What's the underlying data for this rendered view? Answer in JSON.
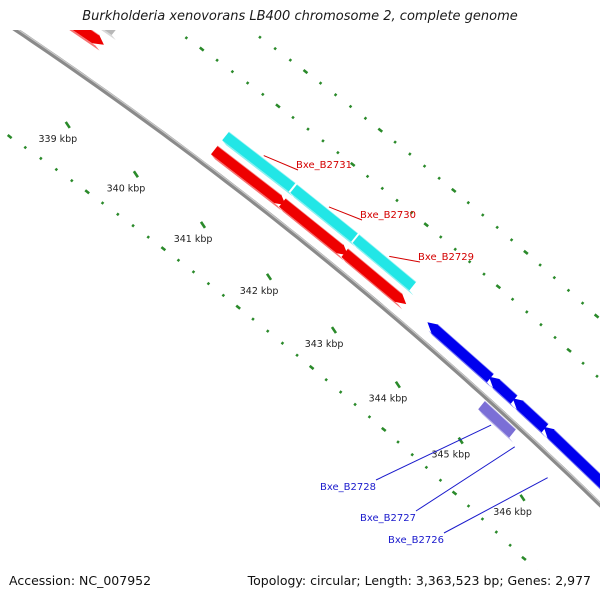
{
  "header": {
    "title": "Burkholderia xenovorans LB400 chromosome 2, complete genome"
  },
  "scale": {
    "tick_labels": [
      "339 kbp",
      "340 kbp",
      "341 kbp",
      "342 kbp",
      "343 kbp",
      "344 kbp",
      "345 kbp",
      "346 kbp"
    ]
  },
  "genes": {
    "labeled": [
      {
        "name": "Bxe_B2731",
        "color": "#d40000"
      },
      {
        "name": "Bxe_B2730",
        "color": "#d40000"
      },
      {
        "name": "Bxe_B2729",
        "color": "#d40000"
      },
      {
        "name": "Bxe_B2728",
        "color": "#1a1acc"
      },
      {
        "name": "Bxe_B2727",
        "color": "#1a1acc"
      },
      {
        "name": "Bxe_B2726",
        "color": "#1a1acc"
      }
    ]
  },
  "colors": {
    "forward_strand": "#ee0000",
    "reverse_strand": "#0000ee",
    "cds_highlight": "#22e6e6",
    "other_feature": "#b8b8b8",
    "rna_feature": "#7b6fd6",
    "gc_ticks": "#2a8a2a",
    "backbone": "#8a8a8a"
  },
  "footer": {
    "accession": "Accession: NC_007952",
    "topology": "Topology: circular; Length: 3,363,523 bp; Genes: 2,977"
  }
}
